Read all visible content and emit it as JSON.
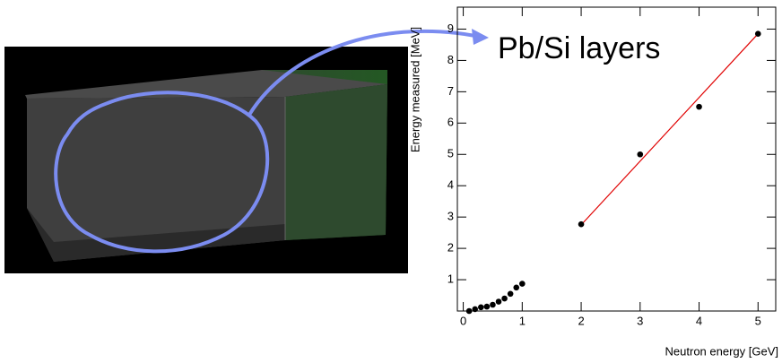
{
  "chart_data": {
    "type": "scatter",
    "x_label": "Neutron energy [GeV]",
    "y_label": "Energy measured [MeV]",
    "annotation": "Pb/Si layers",
    "x": [
      0.1,
      0.2,
      0.3,
      0.4,
      0.5,
      0.6,
      0.7,
      0.8,
      0.9,
      1.0,
      2,
      3,
      4,
      5
    ],
    "values": [
      0.0,
      0.06,
      0.12,
      0.14,
      0.2,
      0.3,
      0.4,
      0.55,
      0.75,
      0.87,
      2.77,
      5.0,
      6.52,
      8.85
    ],
    "color": "#000000",
    "fit_line": {
      "x": [
        2,
        5
      ],
      "values": [
        2.75,
        8.85
      ],
      "color": "#e00000"
    },
    "xlim": [
      -0.1,
      5.3
    ],
    "ylim": [
      0,
      9.7
    ],
    "xticks": [
      0,
      1,
      2,
      3,
      4,
      5
    ],
    "yticks": [
      1,
      2,
      3,
      4,
      5,
      6,
      7,
      8,
      9
    ]
  }
}
